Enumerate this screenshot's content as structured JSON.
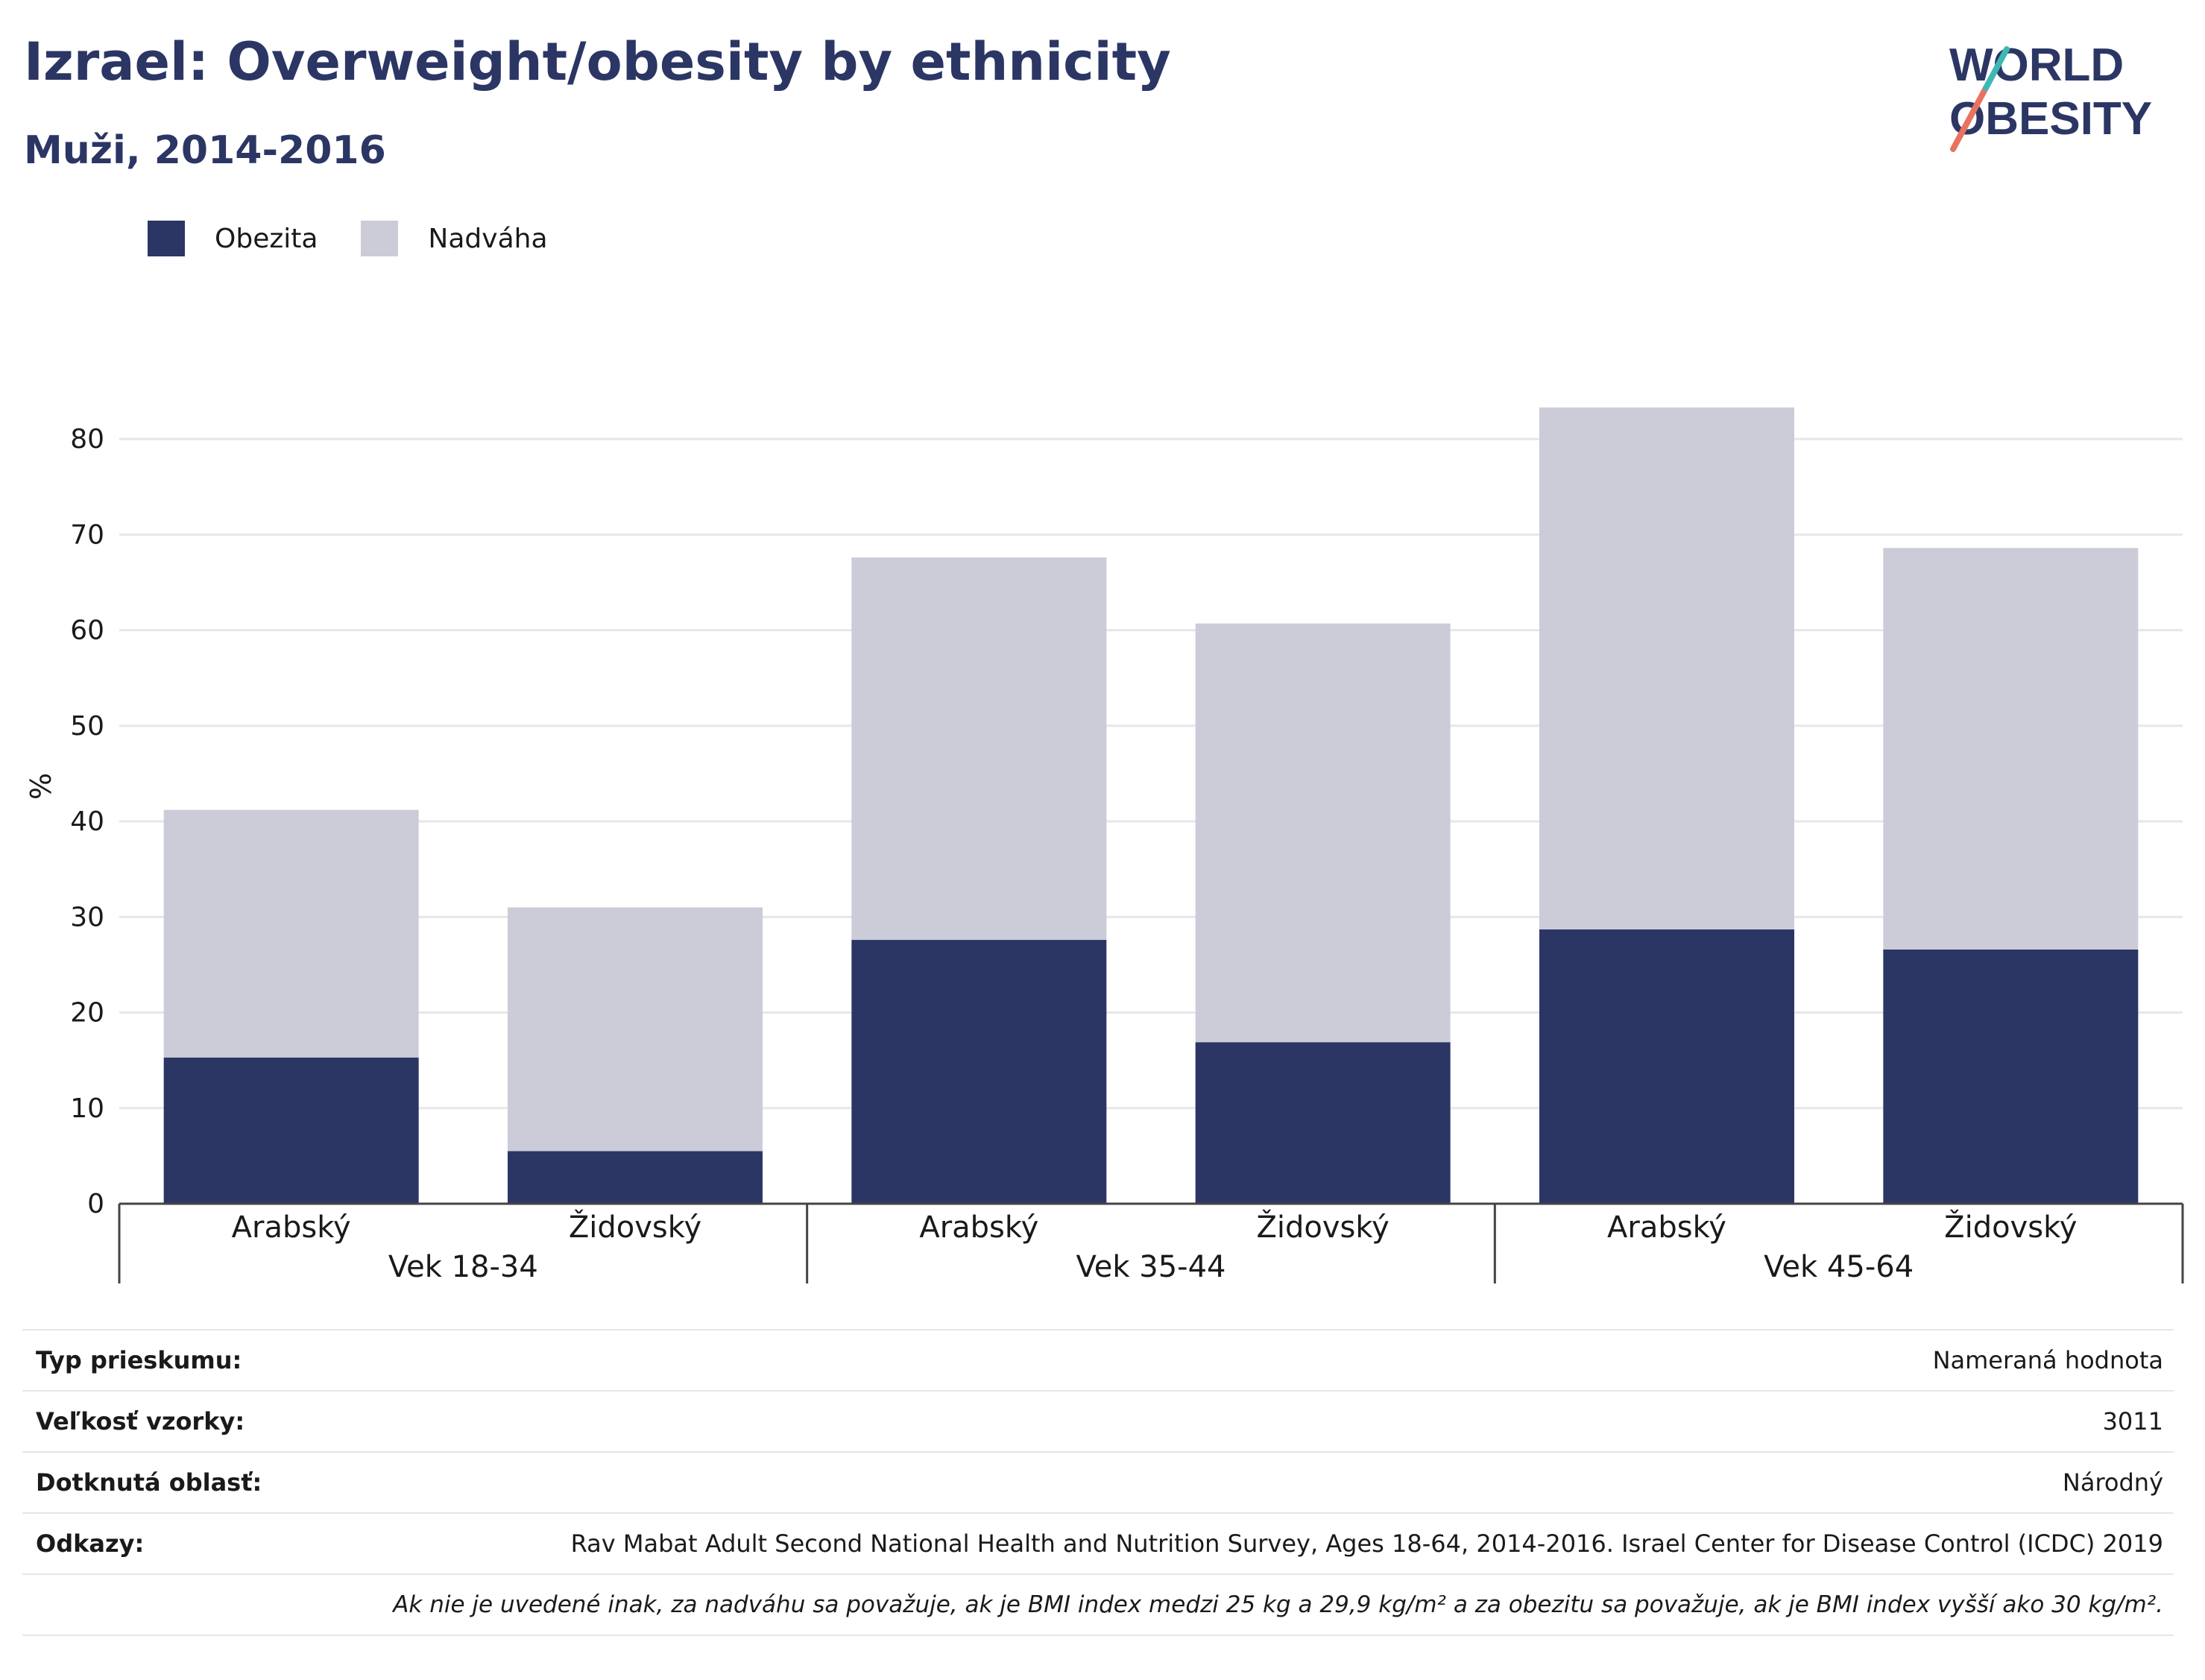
{
  "header": {
    "title": "Izrael: Overweight/obesity by ethnicity",
    "subtitle": "Muži, 2014-2016"
  },
  "logo": {
    "line1": "WORLD",
    "line2": "OBESITY"
  },
  "colors": {
    "obesity": "#2b3664",
    "overweight": "#cbccd8",
    "title": "#2b3664",
    "logo_teal": "#3fb8b4",
    "logo_coral": "#e8735f"
  },
  "chart_data": {
    "type": "bar",
    "stacked": true,
    "ylabel": "%",
    "ylim": [
      0,
      85
    ],
    "yticks": [
      0,
      10,
      20,
      30,
      40,
      50,
      60,
      70,
      80
    ],
    "grid": true,
    "legend_placement": "top-left",
    "groups": [
      {
        "label": "Vek 18-34",
        "categories": [
          "Arabský",
          "Židovský"
        ]
      },
      {
        "label": "Vek 35-44",
        "categories": [
          "Arabský",
          "Židovský"
        ]
      },
      {
        "label": "Vek 45-64",
        "categories": [
          "Arabský",
          "Židovský"
        ]
      }
    ],
    "series": [
      {
        "name": "Obezita",
        "values": [
          15.3,
          5.5,
          27.6,
          16.9,
          28.7,
          26.6
        ]
      },
      {
        "name": "Nadváha",
        "values": [
          25.9,
          25.5,
          40.0,
          43.8,
          54.6,
          42.0
        ]
      }
    ]
  },
  "info": {
    "rows": [
      {
        "label": "Typ prieskumu:",
        "value": "Nameraná hodnota"
      },
      {
        "label": "Veľkosť vzorky:",
        "value": "3011"
      },
      {
        "label": "Dotknutá oblasť:",
        "value": "Národný"
      },
      {
        "label": "Odkazy:",
        "value": "Rav Mabat Adult Second National Health and Nutrition Survey, Ages 18-64, 2014-2016. Israel Center for Disease Control (ICDC) 2019"
      }
    ],
    "note": "Ak nie je uvedené inak, za nadváhu sa považuje, ak je BMI index medzi 25 kg a 29,9 kg/m² a za obezitu sa považuje, ak je BMI index vyšší ako 30 kg/m²."
  }
}
